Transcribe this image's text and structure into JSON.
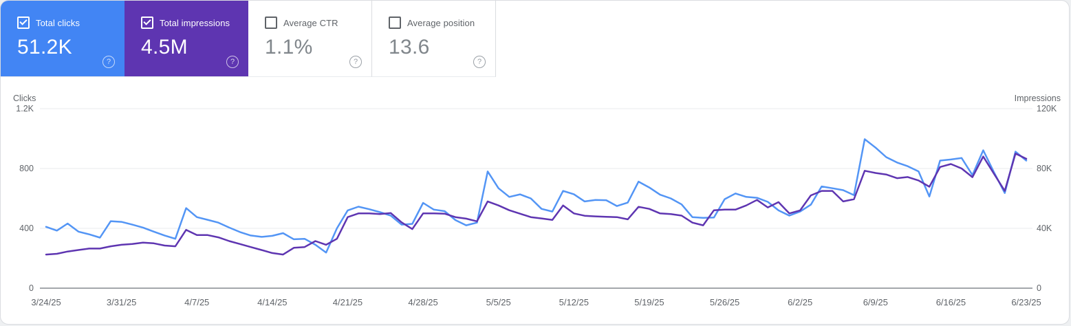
{
  "cards": [
    {
      "label": "Total clicks",
      "value": "51.2K",
      "checked": true,
      "color": "#4285f4"
    },
    {
      "label": "Total impressions",
      "value": "4.5M",
      "checked": true,
      "color": "#5e35b1"
    },
    {
      "label": "Average CTR",
      "value": "1.1%",
      "checked": false
    },
    {
      "label": "Average position",
      "value": "13.6",
      "checked": false
    }
  ],
  "help_glyph": "?",
  "chart_data": {
    "type": "line",
    "grid": "horizontal",
    "legend": "none",
    "left_axis": {
      "title": "Clicks",
      "max": 1200,
      "ticks": [
        {
          "value": 0,
          "label": "0"
        },
        {
          "value": 400,
          "label": "400"
        },
        {
          "value": 800,
          "label": "800"
        },
        {
          "value": 1200,
          "label": "1.2K"
        }
      ]
    },
    "right_axis": {
      "title": "Impressions",
      "max": 120000,
      "ticks": [
        {
          "value": 0,
          "label": "0"
        },
        {
          "value": 40000,
          "label": "40K"
        },
        {
          "value": 80000,
          "label": "80K"
        },
        {
          "value": 120000,
          "label": "120K"
        }
      ]
    },
    "x_ticks": [
      "3/24/25",
      "3/31/25",
      "4/7/25",
      "4/14/25",
      "4/21/25",
      "4/28/25",
      "5/5/25",
      "5/12/25",
      "5/19/25",
      "5/26/25",
      "6/2/25",
      "6/9/25",
      "6/16/25",
      "6/23/25"
    ],
    "x_start": "3/24/25",
    "x_end": "6/23/25",
    "series": [
      {
        "name": "Total clicks",
        "axis": "left",
        "color": "#5395f5",
        "values": [
          410,
          385,
          432,
          378,
          360,
          338,
          448,
          443,
          425,
          405,
          378,
          352,
          330,
          535,
          475,
          457,
          438,
          405,
          375,
          352,
          343,
          350,
          368,
          327,
          330,
          290,
          238,
          400,
          520,
          545,
          528,
          508,
          485,
          425,
          430,
          570,
          525,
          515,
          455,
          420,
          438,
          780,
          668,
          610,
          627,
          600,
          530,
          512,
          650,
          628,
          580,
          590,
          588,
          549,
          572,
          712,
          673,
          625,
          600,
          560,
          475,
          470,
          472,
          595,
          633,
          610,
          604,
          577,
          520,
          485,
          512,
          558,
          680,
          668,
          655,
          622,
          996,
          940,
          876,
          840,
          815,
          780,
          613,
          853,
          860,
          870,
          756,
          922,
          775,
          636,
          913,
          853
        ]
      },
      {
        "name": "Total impressions",
        "axis": "right",
        "color": "#5e35b1",
        "values": [
          22500,
          23000,
          24500,
          25500,
          26500,
          26500,
          28000,
          29000,
          29500,
          30500,
          30000,
          28500,
          28000,
          39000,
          35500,
          35500,
          34000,
          31500,
          29500,
          27500,
          25500,
          23500,
          22500,
          27000,
          27500,
          31500,
          29000,
          33000,
          47500,
          50000,
          50000,
          49500,
          50200,
          44000,
          39500,
          50000,
          50000,
          49800,
          47500,
          46500,
          44700,
          58000,
          55300,
          52100,
          49800,
          47500,
          46600,
          45600,
          55300,
          50000,
          48400,
          48000,
          47700,
          47500,
          46000,
          54400,
          53000,
          50000,
          49500,
          48500,
          43800,
          42000,
          52100,
          52500,
          52500,
          55300,
          59000,
          54000,
          57500,
          50000,
          52000,
          62000,
          65000,
          65000,
          58000,
          59500,
          78500,
          77000,
          76000,
          73500,
          74300,
          72000,
          67800,
          81000,
          83000,
          80000,
          74200,
          88000,
          76500,
          65000,
          90000,
          86500
        ]
      }
    ]
  }
}
